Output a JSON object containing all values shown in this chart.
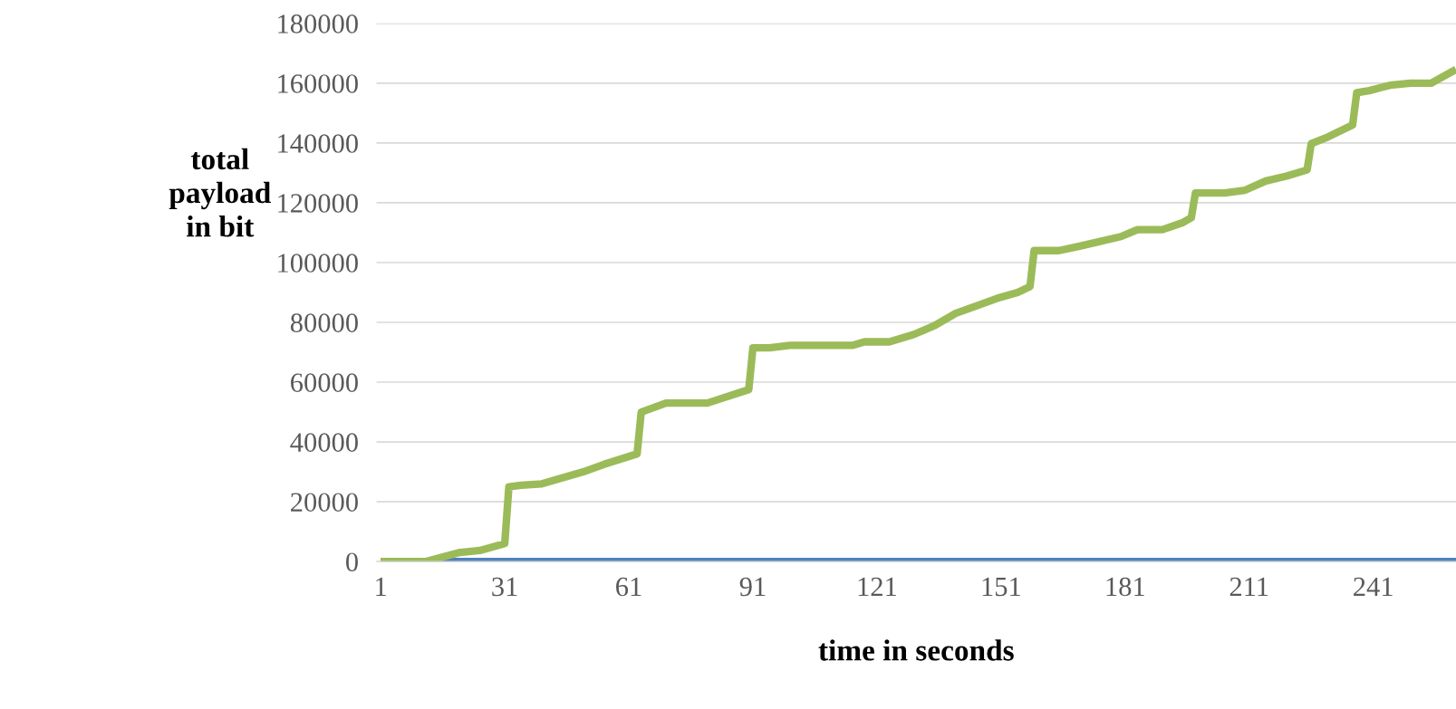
{
  "chart_data": {
    "type": "line",
    "xlabel": "time in seconds",
    "ylabel": "total\npayload\nin bit",
    "xlim": [
      0,
      261
    ],
    "xticks": [
      1,
      31,
      61,
      91,
      121,
      151,
      181,
      211,
      241
    ],
    "ylim": [
      0,
      180000
    ],
    "yticks": [
      0,
      20000,
      40000,
      60000,
      80000,
      100000,
      120000,
      140000,
      160000,
      180000
    ],
    "grid": "y",
    "legend": false,
    "marker": "none",
    "line_style": "solid",
    "series": [
      {
        "color": "#4f81bd",
        "x": [
          1,
          261
        ],
        "values": [
          0,
          0
        ]
      },
      {
        "color": "#9bbb59",
        "x": [
          1,
          12,
          20,
          25,
          31,
          32,
          35,
          40,
          50,
          55,
          63,
          64,
          70,
          80,
          90,
          91,
          95,
          100,
          115,
          118,
          124,
          130,
          135,
          140,
          145,
          150,
          155,
          158,
          159,
          165,
          170,
          180,
          184,
          190,
          195,
          197,
          198,
          205,
          210,
          215,
          220,
          225,
          226,
          230,
          236,
          237,
          240,
          245,
          250,
          255,
          261
        ],
        "values": [
          0,
          0,
          3000,
          3700,
          6000,
          25000,
          25500,
          26000,
          30000,
          32500,
          36000,
          50000,
          53000,
          53000,
          57500,
          71500,
          71500,
          72300,
          72300,
          73500,
          73500,
          76000,
          79000,
          83000,
          85500,
          88000,
          90000,
          92000,
          104000,
          104000,
          105500,
          108700,
          111000,
          111000,
          113400,
          115000,
          123300,
          123300,
          124200,
          127300,
          128900,
          131000,
          139800,
          142000,
          146000,
          156800,
          157500,
          159300,
          160000,
          160000,
          164600
        ]
      }
    ]
  }
}
